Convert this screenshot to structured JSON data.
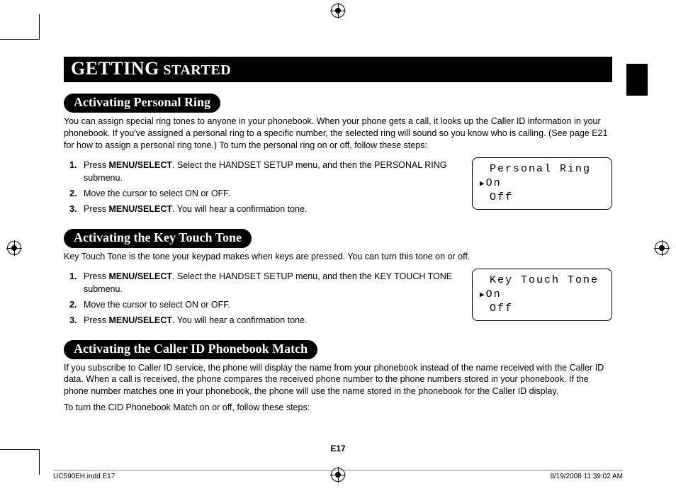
{
  "banner": {
    "line1_big": "GETTING",
    "line1_small": " STARTED"
  },
  "section1": {
    "title": "Activating Personal Ring",
    "intro": "You can assign special ring tones to anyone in your phonebook. When your phone gets a call, it looks up the Caller ID information in your phonebook. If you've assigned a personal ring to a specific number, the selected ring will sound so you know who is calling. (See page E21 for how to assign a personal ring tone.) To turn the personal ring on or off, follow these steps:",
    "step1_a": "Press ",
    "step1_b": "MENU/SELECT",
    "step1_c": ". Select the HANDSET SETUP menu, and then the PERSONAL RING submenu.",
    "step2": "Move the cursor to select ON or OFF.",
    "step3_a": "Press ",
    "step3_b": "MENU/SELECT",
    "step3_c": ". You will hear a confirmation tone.",
    "lcd": {
      "title": "Personal Ring",
      "opt1": "On",
      "opt2": "Off"
    }
  },
  "section2": {
    "title": "Activating the Key Touch Tone",
    "intro": "Key Touch Tone is the tone your keypad makes when keys are pressed. You can turn this tone on or off.",
    "step1_a": "Press ",
    "step1_b": "MENU/SELECT",
    "step1_c": ". Select the HANDSET SETUP menu, and then the KEY TOUCH TONE submenu.",
    "step2": "Move the cursor to select ON or OFF.",
    "step3_a": "Press ",
    "step3_b": "MENU/SELECT",
    "step3_c": ". You will hear a confirmation tone.",
    "lcd": {
      "title": "Key Touch Tone",
      "opt1": "On",
      "opt2": "Off"
    }
  },
  "section3": {
    "title": "Activating the Caller ID Phonebook Match",
    "para1": "If you subscribe to Caller ID service, the phone will display the name from your phonebook instead of the name received with the Caller ID data. When a call is received, the phone compares the received phone number to the phone numbers stored in your phonebook. If the phone number matches one in your phonebook, the phone will use the name stored in the phonebook for the Caller ID display.",
    "para2": "To turn the CID Phonebook Match on or off, follow these steps:"
  },
  "pagenum": "E17",
  "footer": {
    "left": "UC590EH.indd   E17",
    "right": "8/19/2008   11:39:02 AM"
  }
}
